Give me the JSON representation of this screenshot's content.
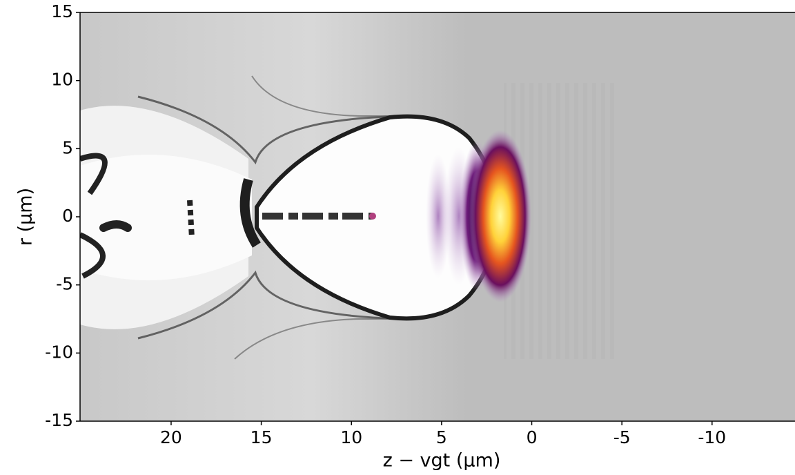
{
  "chart_data": {
    "type": "image",
    "xlabel": "z − vgt (µm)",
    "ylabel": "r (µm)",
    "xlim": [
      25.05,
      -14.6
    ],
    "ylim": [
      -15,
      15
    ],
    "xticks": [
      20,
      15,
      10,
      5,
      0,
      -5,
      -10
    ],
    "yticks": [
      -15,
      -10,
      -5,
      0,
      5,
      10,
      15
    ]
  }
}
